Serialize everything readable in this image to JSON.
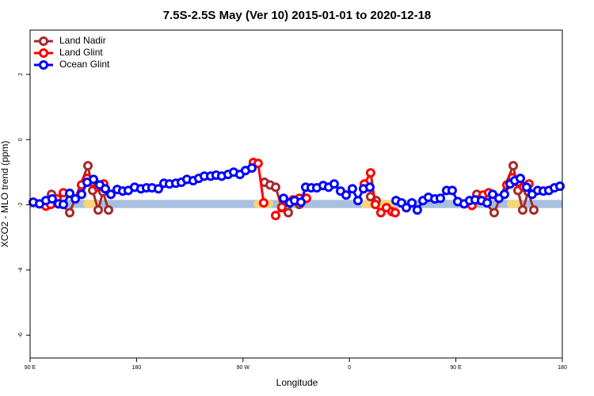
{
  "chart_data": {
    "type": "line",
    "title": "7.5S-2.5S May (Ver 10)   2015-01-01 to 2020-12-18",
    "xlabel": "Longitude",
    "ylabel": "XCO2 - MLO trend (ppm)",
    "xlim": [
      90,
      540
    ],
    "xticks": [
      {
        "value": 90,
        "label": "90 E"
      },
      {
        "value": 180,
        "label": "180"
      },
      {
        "value": 270,
        "label": "90 W"
      },
      {
        "value": 360,
        "label": "0"
      },
      {
        "value": 450,
        "label": "90 E"
      },
      {
        "value": 540,
        "label": "180"
      }
    ],
    "ylim": [
      -6.7,
      3.36
    ],
    "yticks": [
      2,
      0,
      -2,
      -4,
      -6
    ],
    "legend": "top-left",
    "band": {
      "ylim": [
        -2.1,
        -1.85
      ],
      "color": "#a8bfe0",
      "highlight_color": "#f5d67a",
      "highlight_x": [
        [
          134.9,
          148.3
        ],
        [
          278.8,
          295.6
        ],
        [
          369.2,
          399.4
        ],
        [
          493.1,
          506.5
        ]
      ]
    },
    "series": [
      {
        "name": "Land Nadir",
        "color": "#a52a2a",
        "x": [
          108.1,
          123.5,
          138.9,
          142.9,
          147.6,
          151.6,
          156.3,
          null,
          288.2,
          292.9,
          297.6,
          302.9,
          308.3,
          312.3,
          317.7,
          323.0,
          null,
          377.9,
          382.6,
          null,
          467.7,
          482.4,
          498.5,
          502.5,
          506.5,
          511.2,
          515.9
        ],
        "values": [
          -1.68,
          -2.24,
          -0.8,
          -1.56,
          -2.16,
          -1.6,
          -2.16,
          null,
          -1.31,
          -1.39,
          -1.46,
          -2.09,
          -2.24,
          -1.87,
          -1.99,
          -1.8,
          null,
          -1.75,
          -1.87,
          null,
          -1.68,
          -2.24,
          -0.8,
          -1.56,
          -2.16,
          -1.6,
          -2.16
        ]
      },
      {
        "name": "Land Glint",
        "color": "#ff0000",
        "x": [
          103.4,
          107.4,
          112.8,
          118.1,
          null,
          133.5,
          138.2,
          142.9,
          147.6,
          152.3,
          null,
          278.8,
          282.8,
          287.5,
          null,
          297.6,
          302.9,
          312.3,
          317.7,
          323.7,
          null,
          372.6,
          377.9,
          381.9,
          386.6,
          391.3,
          396.0,
          398.7,
          null,
          463.6,
          469.0,
          473.0,
          477.7,
          null,
          493.1,
          497.8,
          502.5,
          507.2,
          511.8
        ],
        "values": [
          -2.04,
          -1.99,
          -1.82,
          -1.63,
          null,
          -1.39,
          -1.19,
          -1.31,
          -1.46,
          -1.36,
          null,
          -0.7,
          -0.73,
          -1.94,
          null,
          -2.33,
          -2.07,
          -1.85,
          -1.8,
          -1.8,
          null,
          -1.36,
          -1.02,
          -1.99,
          -2.24,
          -2.09,
          -2.21,
          -2.24,
          null,
          -2.02,
          -1.85,
          -1.7,
          -1.63,
          null,
          -1.39,
          -1.17,
          -1.31,
          -1.46,
          -1.36
        ]
      },
      {
        "name": "Ocean Glint",
        "color": "#0000ff",
        "x": [
          92.7,
          98.0,
          103.4,
          108.7,
          114.1,
          118.1,
          123.5,
          128.2,
          133.5,
          138.2,
          143.6,
          148.9,
          153.6,
          158.3,
          163.7,
          168.3,
          173.0,
          178.4,
          183.7,
          188.4,
          193.1,
          198.5,
          203.2,
          207.8,
          213.2,
          217.9,
          222.6,
          227.9,
          232.6,
          237.3,
          242.7,
          247.3,
          252.0,
          257.4,
          262.1,
          267.4,
          272.1,
          277.5,
          null,
          304.3,
          309.6,
          313.6,
          319.0,
          323.0,
          327.7,
          332.4,
          337.8,
          342.4,
          347.1,
          352.5,
          357.2,
          362.5,
          367.2,
          371.9,
          377.3,
          null,
          399.4,
          404.0,
          408.1,
          412.8,
          417.4,
          422.2,
          426.8,
          432.2,
          436.9,
          442.2,
          446.9,
          451.6,
          457.0,
          461.6,
          466.3,
          471.7,
          476.4,
          481.1,
          486.4,
          491.1,
          495.8,
          499.8,
          504.5,
          509.8,
          514.5,
          519.2,
          523.9,
          528.6,
          533.3,
          538.0
        ],
        "values": [
          -1.92,
          -1.97,
          -1.87,
          -1.82,
          -1.97,
          -1.99,
          -1.65,
          -1.82,
          -1.68,
          -1.31,
          -1.22,
          -1.39,
          -1.51,
          -1.68,
          -1.53,
          -1.58,
          -1.56,
          -1.46,
          -1.51,
          -1.48,
          -1.48,
          -1.51,
          -1.34,
          -1.36,
          -1.34,
          -1.31,
          -1.22,
          -1.26,
          -1.19,
          -1.12,
          -1.12,
          -1.09,
          -1.12,
          -1.07,
          -1.0,
          -1.07,
          -0.95,
          -0.87,
          null,
          -1.8,
          -1.94,
          -1.87,
          -1.92,
          -1.46,
          -1.48,
          -1.48,
          -1.41,
          -1.46,
          -1.36,
          -1.58,
          -1.7,
          -1.51,
          -1.87,
          -1.51,
          -1.46,
          null,
          -1.87,
          -1.94,
          -2.09,
          -1.94,
          -2.16,
          -1.87,
          -1.77,
          -1.82,
          -1.8,
          -1.56,
          -1.56,
          -1.9,
          -1.97,
          -1.87,
          -1.85,
          -1.87,
          -1.94,
          -1.68,
          -1.8,
          -1.68,
          -1.36,
          -1.26,
          -1.19,
          -1.46,
          -1.68,
          -1.56,
          -1.58,
          -1.56,
          -1.48,
          -1.43
        ]
      }
    ]
  }
}
